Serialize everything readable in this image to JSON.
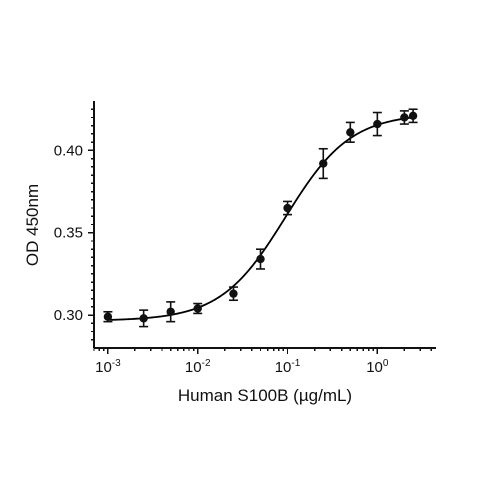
{
  "chart_data": {
    "type": "scatter",
    "xlabel": "Human S100B (µg/mL)",
    "ylabel": "OD 450nm",
    "xscale": "log",
    "xlim": [
      0.0007,
      4.5
    ],
    "ylim": [
      0.28,
      0.43
    ],
    "grid": false,
    "legend": "none",
    "x_tick_labels": [
      {
        "base": "10",
        "exp": "-3",
        "value": 0.001
      },
      {
        "base": "10",
        "exp": "-2",
        "value": 0.01
      },
      {
        "base": "10",
        "exp": "-1",
        "value": 0.1
      },
      {
        "base": "10",
        "exp": "0",
        "value": 1
      }
    ],
    "y_ticks": [
      0.3,
      0.35,
      0.4
    ],
    "y_tick_labels": [
      "0.30",
      "0.35",
      "0.40"
    ],
    "series": [
      {
        "points": [
          {
            "x": 0.001,
            "y": 0.299,
            "err": 0.003
          },
          {
            "x": 0.0025,
            "y": 0.298,
            "err": 0.005
          },
          {
            "x": 0.005,
            "y": 0.302,
            "err": 0.006
          },
          {
            "x": 0.01,
            "y": 0.304,
            "err": 0.003
          },
          {
            "x": 0.025,
            "y": 0.313,
            "err": 0.004
          },
          {
            "x": 0.05,
            "y": 0.334,
            "err": 0.006
          },
          {
            "x": 0.1,
            "y": 0.365,
            "err": 0.004
          },
          {
            "x": 0.25,
            "y": 0.392,
            "err": 0.009
          },
          {
            "x": 0.5,
            "y": 0.411,
            "err": 0.006
          },
          {
            "x": 1.0,
            "y": 0.416,
            "err": 0.007
          },
          {
            "x": 2.0,
            "y": 0.42,
            "err": 0.004
          },
          {
            "x": 2.5,
            "y": 0.421,
            "err": 0.004
          }
        ]
      }
    ],
    "fit_curve": {
      "model": "4PL",
      "bottom": 0.2965,
      "top": 0.4225,
      "ec50": 0.095,
      "hill": 1.2
    },
    "colors": {
      "axis": "#111111",
      "marker": "#111111",
      "curve": "#000000"
    }
  }
}
